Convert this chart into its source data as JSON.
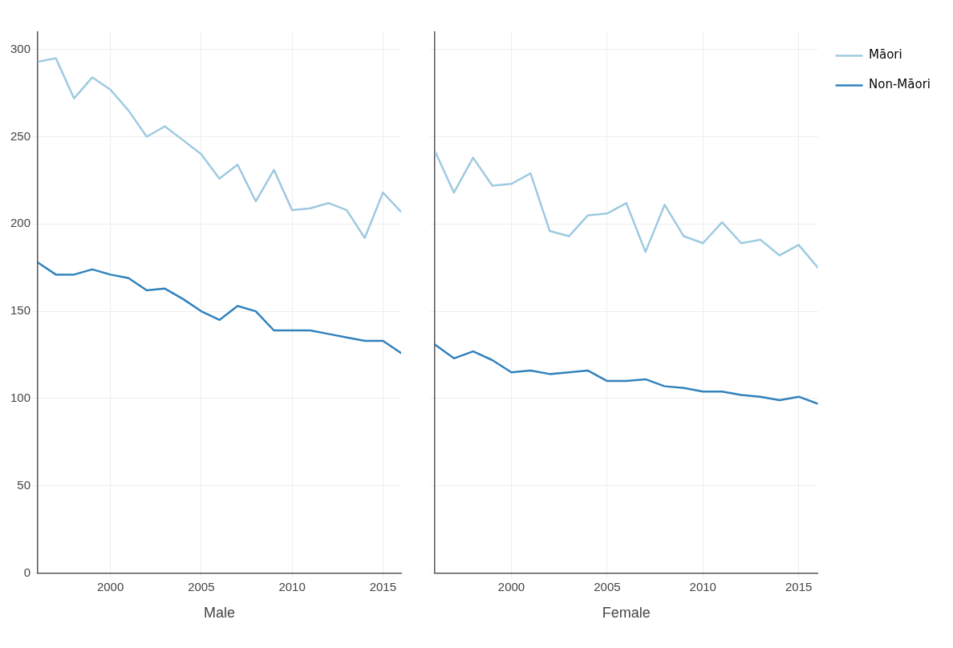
{
  "chart_data": [
    {
      "type": "line",
      "xlabel": "Male",
      "x": [
        1996,
        1997,
        1998,
        1999,
        2000,
        2001,
        2002,
        2003,
        2004,
        2005,
        2006,
        2007,
        2008,
        2009,
        2010,
        2011,
        2012,
        2013,
        2014,
        2015,
        2016
      ],
      "series": [
        {
          "color": "#9ecae1",
          "values": [
            293,
            295,
            272,
            284,
            277,
            265,
            250,
            256,
            248,
            240,
            226,
            234,
            213,
            231,
            208,
            209,
            212,
            208,
            192,
            218,
            207
          ]
        },
        {
          "color": "#3182bd",
          "values": [
            178,
            171,
            171,
            174,
            171,
            169,
            162,
            163,
            157,
            150,
            145,
            153,
            150,
            139,
            139,
            139,
            137,
            135,
            133,
            133,
            126
          ]
        }
      ],
      "xlim": [
        1996,
        2016
      ],
      "xticks": [
        2000,
        2005,
        2010,
        2015
      ],
      "ylim": [
        0,
        310
      ],
      "yticks": [
        0,
        50,
        100,
        150,
        200,
        250,
        300
      ],
      "grid": true,
      "legend": false,
      "marker": "none",
      "line_style": "solid"
    },
    {
      "type": "line",
      "xlabel": "Female",
      "x": [
        1996,
        1997,
        1998,
        1999,
        2000,
        2001,
        2002,
        2003,
        2004,
        2005,
        2006,
        2007,
        2008,
        2009,
        2010,
        2011,
        2012,
        2013,
        2014,
        2015,
        2016
      ],
      "series": [
        {
          "name": "Māori",
          "color": "#9ecae1",
          "values": [
            242,
            218,
            238,
            222,
            223,
            229,
            196,
            193,
            205,
            206,
            212,
            184,
            211,
            193,
            189,
            201,
            189,
            191,
            182,
            188,
            175
          ]
        },
        {
          "name": "Non-Māori",
          "color": "#3182bd",
          "values": [
            131,
            123,
            127,
            122,
            115,
            116,
            114,
            115,
            116,
            110,
            110,
            111,
            107,
            106,
            104,
            104,
            102,
            101,
            99,
            101,
            97
          ]
        }
      ],
      "xlim": [
        1996,
        2016
      ],
      "xticks": [
        2000,
        2005,
        2010,
        2015
      ],
      "ylim": [
        0,
        310
      ],
      "yticks": [
        0,
        50,
        100,
        150,
        200,
        250,
        300
      ],
      "grid": true,
      "legend": "top right",
      "tick_labels": "x",
      "marker": "none",
      "line_style": "solid"
    }
  ]
}
